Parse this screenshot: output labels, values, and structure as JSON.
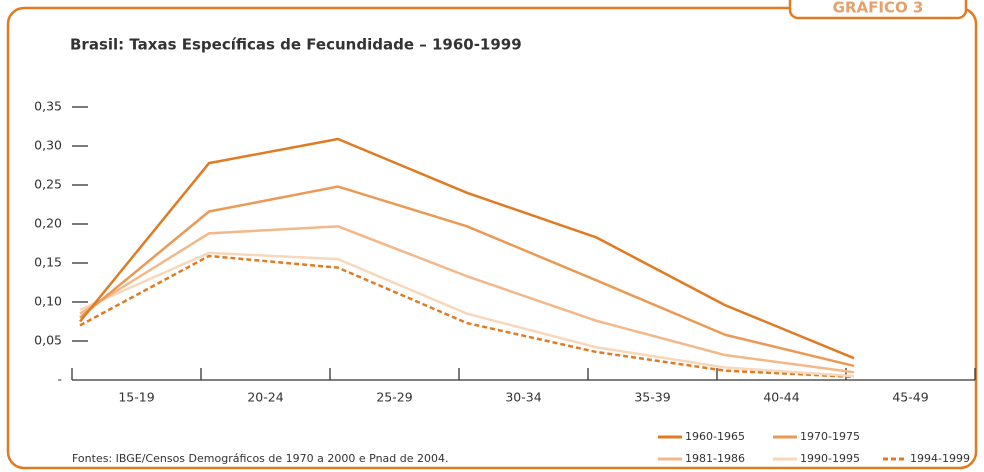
{
  "chart_data": {
    "type": "line",
    "tab_label": "GRÁFICO 3",
    "title": "Brasil: Taxas Específicas de Fecundidade – 1960-1999",
    "source": "Fontes: IBGE/Censos Demográficos de 1970 a 2000 e Pnad de 2004.",
    "categories": [
      "15-19",
      "20-24",
      "25-29",
      "30-34",
      "35-39",
      "40-44",
      "45-49"
    ],
    "series": [
      {
        "name": "1960-1965",
        "color": "#e07b24",
        "style": "solid",
        "values": [
          0.075,
          0.278,
          0.309,
          0.24,
          0.183,
          0.096,
          0.028
        ]
      },
      {
        "name": "1970-1975",
        "color": "#eb9a56",
        "style": "solid",
        "values": [
          0.08,
          0.216,
          0.248,
          0.197,
          0.128,
          0.058,
          0.018
        ]
      },
      {
        "name": "1981-1986",
        "color": "#f2b88a",
        "style": "solid",
        "values": [
          0.085,
          0.188,
          0.197,
          0.133,
          0.076,
          0.032,
          0.01
        ]
      },
      {
        "name": "1990-1995",
        "color": "#f8d7bb",
        "style": "solid",
        "values": [
          0.09,
          0.163,
          0.155,
          0.085,
          0.042,
          0.016,
          0.005
        ]
      },
      {
        "name": "1994-1999",
        "color": "#e07b24",
        "style": "dashed",
        "values": [
          0.07,
          0.159,
          0.144,
          0.073,
          0.036,
          0.012,
          0.004
        ]
      }
    ],
    "ylim": [
      0,
      0.35
    ],
    "yticks": [
      {
        "value": 0,
        "label": "-"
      },
      {
        "value": 0.05,
        "label": "0,05"
      },
      {
        "value": 0.1,
        "label": "0,10"
      },
      {
        "value": 0.15,
        "label": "0,15"
      },
      {
        "value": 0.2,
        "label": "0,20"
      },
      {
        "value": 0.25,
        "label": "0,25"
      },
      {
        "value": 0.3,
        "label": "0,30"
      },
      {
        "value": 0.35,
        "label": "0,35"
      }
    ]
  }
}
